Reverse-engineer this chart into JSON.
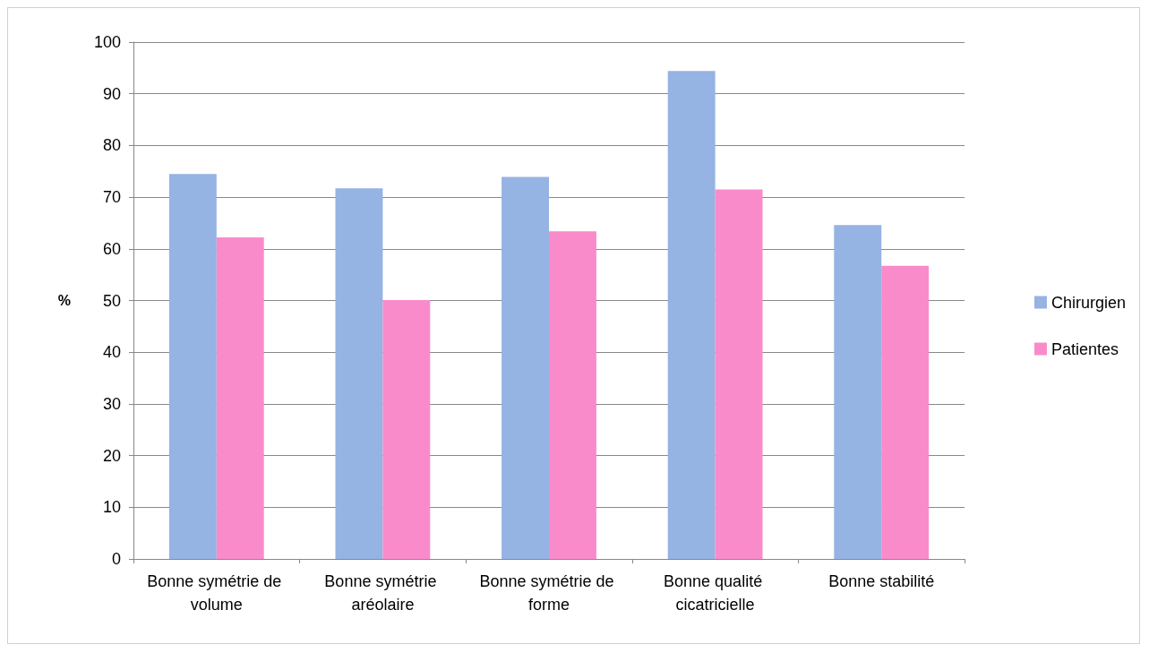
{
  "chart_data": {
    "type": "bar",
    "ylabel": "%",
    "categories": [
      "Bonne symétrie de volume",
      "Bonne symétrie aréolaire",
      "Bonne symétrie de forme",
      "Bonne qualité cicatricielle",
      "Bonne stabilité"
    ],
    "series": [
      {
        "name": "Chirurgien",
        "color": "#95b3e3",
        "values": [
          74.5,
          71.7,
          73.9,
          94.4,
          64.6
        ]
      },
      {
        "name": "Patientes",
        "color": "#f98bcb",
        "values": [
          62.2,
          50.1,
          63.4,
          71.5,
          56.7
        ]
      }
    ],
    "ylim": [
      0,
      100
    ],
    "yticks": [
      0,
      10,
      20,
      30,
      40,
      50,
      60,
      70,
      80,
      90,
      100
    ],
    "grid": "y",
    "legend": "right"
  }
}
